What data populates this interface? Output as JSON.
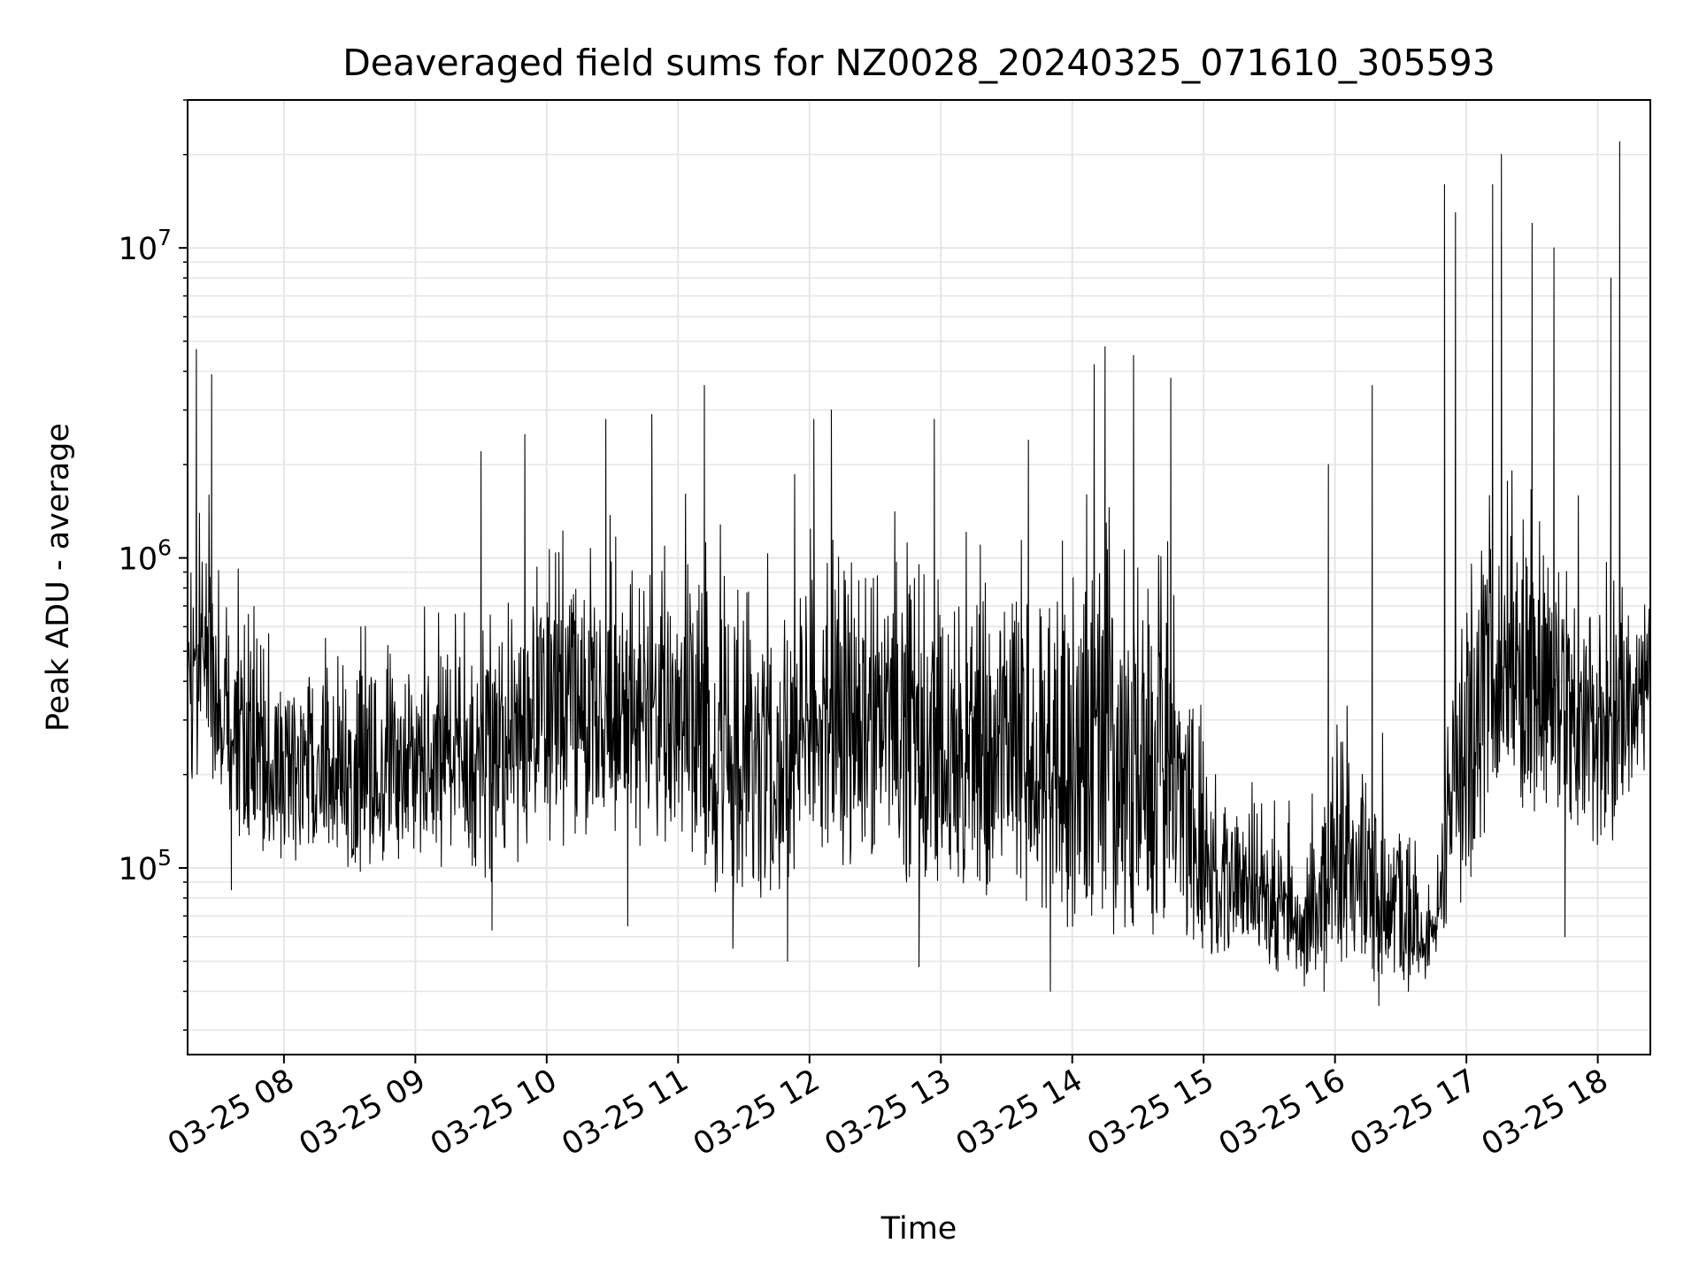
{
  "chart_data": {
    "type": "line",
    "title": "Deaveraged field sums for NZ0028_20240325_071610_305593",
    "xlabel": "Time",
    "ylabel": "Peak ADU - average",
    "y_scale": "log",
    "grid": "major and minor, x and y",
    "legend": "none",
    "colors": {
      "line": "#000000",
      "grid": "#e6e6e6",
      "frame": "#000000"
    },
    "x_range": [
      "2024-03-25 07:16",
      "2024-03-25 18:24"
    ],
    "ylim": [
      25000,
      30000000
    ],
    "x_ticks": [
      {
        "t": "2024-03-25 08:00",
        "label": "03-25 08"
      },
      {
        "t": "2024-03-25 09:00",
        "label": "03-25 09"
      },
      {
        "t": "2024-03-25 10:00",
        "label": "03-25 10"
      },
      {
        "t": "2024-03-25 11:00",
        "label": "03-25 11"
      },
      {
        "t": "2024-03-25 12:00",
        "label": "03-25 12"
      },
      {
        "t": "2024-03-25 13:00",
        "label": "03-25 13"
      },
      {
        "t": "2024-03-25 14:00",
        "label": "03-25 14"
      },
      {
        "t": "2024-03-25 15:00",
        "label": "03-25 15"
      },
      {
        "t": "2024-03-25 16:00",
        "label": "03-25 16"
      },
      {
        "t": "2024-03-25 17:00",
        "label": "03-25 17"
      },
      {
        "t": "2024-03-25 18:00",
        "label": "03-25 18"
      }
    ],
    "y_ticks": [
      {
        "value": 100000,
        "base": "10",
        "exp": "5"
      },
      {
        "value": 1000000,
        "base": "10",
        "exp": "6"
      },
      {
        "value": 10000000,
        "base": "10",
        "exp": "7"
      }
    ],
    "series": [
      {
        "envelope": [
          {
            "t": "2024-03-25 07:16",
            "low": 150000,
            "high": 1500000
          },
          {
            "t": "2024-03-25 07:25",
            "low": 200000,
            "high": 3800000
          },
          {
            "t": "2024-03-25 07:32",
            "low": 130000,
            "high": 1200000
          },
          {
            "t": "2024-03-25 08:00",
            "low": 95000,
            "high": 900000
          },
          {
            "t": "2024-03-25 08:30",
            "low": 90000,
            "high": 850000
          },
          {
            "t": "2024-03-25 09:00",
            "low": 95000,
            "high": 900000
          },
          {
            "t": "2024-03-25 09:30",
            "low": 85000,
            "high": 1200000
          },
          {
            "t": "2024-03-25 10:00",
            "low": 110000,
            "high": 2000000
          },
          {
            "t": "2024-03-25 10:30",
            "low": 110000,
            "high": 2200000
          },
          {
            "t": "2024-03-25 11:00",
            "low": 100000,
            "high": 2200000
          },
          {
            "t": "2024-03-25 11:15",
            "low": 65000,
            "high": 3000000
          },
          {
            "t": "2024-03-25 11:45",
            "low": 70000,
            "high": 1700000
          },
          {
            "t": "2024-03-25 12:00",
            "low": 90000,
            "high": 2000000
          },
          {
            "t": "2024-03-25 12:30",
            "low": 90000,
            "high": 2300000
          },
          {
            "t": "2024-03-25 13:00",
            "low": 65000,
            "high": 2000000
          },
          {
            "t": "2024-03-25 13:30",
            "low": 75000,
            "high": 2200000
          },
          {
            "t": "2024-03-25 14:00",
            "low": 55000,
            "high": 2000000
          },
          {
            "t": "2024-03-25 14:15",
            "low": 50000,
            "high": 4000000
          },
          {
            "t": "2024-03-25 14:45",
            "low": 50000,
            "high": 2500000
          },
          {
            "t": "2024-03-25 15:00",
            "low": 50000,
            "high": 350000
          },
          {
            "t": "2024-03-25 15:30",
            "low": 42000,
            "high": 250000
          },
          {
            "t": "2024-03-25 15:45",
            "low": 38000,
            "high": 150000
          },
          {
            "t": "2024-03-25 16:00",
            "low": 40000,
            "high": 600000
          },
          {
            "t": "2024-03-25 16:30",
            "low": 38000,
            "high": 250000
          },
          {
            "t": "2024-03-25 16:45",
            "low": 42000,
            "high": 90000
          },
          {
            "t": "2024-03-25 16:55",
            "low": 60000,
            "high": 2000000
          },
          {
            "t": "2024-03-25 17:15",
            "low": 150000,
            "high": 4000000
          },
          {
            "t": "2024-03-25 17:45",
            "low": 130000,
            "high": 1800000
          },
          {
            "t": "2024-03-25 18:00",
            "low": 90000,
            "high": 2000000
          },
          {
            "t": "2024-03-25 18:24",
            "low": 200000,
            "high": 1300000
          }
        ],
        "spikes": [
          {
            "t": "2024-03-25 07:20",
            "value": 4700000
          },
          {
            "t": "2024-03-25 07:27",
            "value": 3900000
          },
          {
            "t": "2024-03-25 07:36",
            "value": 85000
          },
          {
            "t": "2024-03-25 09:30",
            "value": 2200000
          },
          {
            "t": "2024-03-25 09:35",
            "value": 63000
          },
          {
            "t": "2024-03-25 09:50",
            "value": 2500000
          },
          {
            "t": "2024-03-25 10:27",
            "value": 2800000
          },
          {
            "t": "2024-03-25 10:37",
            "value": 65000
          },
          {
            "t": "2024-03-25 10:48",
            "value": 2900000
          },
          {
            "t": "2024-03-25 11:12",
            "value": 3600000
          },
          {
            "t": "2024-03-25 11:25",
            "value": 55000
          },
          {
            "t": "2024-03-25 11:50",
            "value": 50000
          },
          {
            "t": "2024-03-25 12:02",
            "value": 2800000
          },
          {
            "t": "2024-03-25 12:10",
            "value": 3000000
          },
          {
            "t": "2024-03-25 12:50",
            "value": 48000
          },
          {
            "t": "2024-03-25 12:57",
            "value": 2800000
          },
          {
            "t": "2024-03-25 13:40",
            "value": 2400000
          },
          {
            "t": "2024-03-25 13:50",
            "value": 40000
          },
          {
            "t": "2024-03-25 14:10",
            "value": 4200000
          },
          {
            "t": "2024-03-25 14:15",
            "value": 4800000
          },
          {
            "t": "2024-03-25 14:28",
            "value": 4500000
          },
          {
            "t": "2024-03-25 14:45",
            "value": 3800000
          },
          {
            "t": "2024-03-25 15:57",
            "value": 2000000
          },
          {
            "t": "2024-03-25 15:55",
            "value": 40000
          },
          {
            "t": "2024-03-25 16:17",
            "value": 3600000
          },
          {
            "t": "2024-03-25 16:20",
            "value": 36000
          },
          {
            "t": "2024-03-25 16:50",
            "value": 16000000
          },
          {
            "t": "2024-03-25 16:55",
            "value": 13000000
          },
          {
            "t": "2024-03-25 17:12",
            "value": 16000000
          },
          {
            "t": "2024-03-25 17:16",
            "value": 20000000
          },
          {
            "t": "2024-03-25 17:30",
            "value": 12000000
          },
          {
            "t": "2024-03-25 17:40",
            "value": 10000000
          },
          {
            "t": "2024-03-25 17:45",
            "value": 60000
          },
          {
            "t": "2024-03-25 18:06",
            "value": 8000000
          },
          {
            "t": "2024-03-25 18:10",
            "value": 22000000
          }
        ]
      }
    ]
  }
}
